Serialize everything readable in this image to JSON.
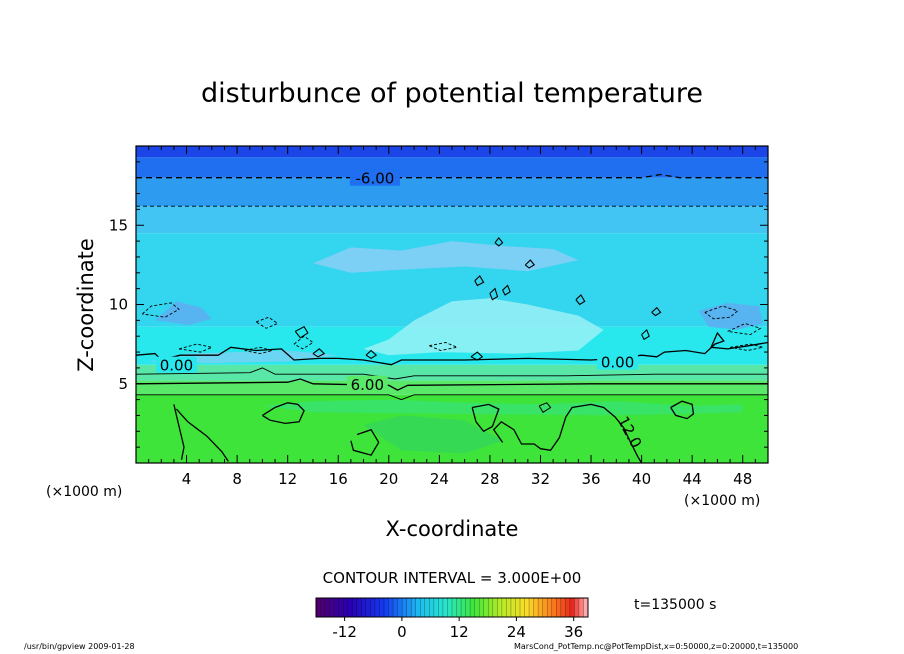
{
  "chart_data": {
    "type": "contour",
    "title": "disturbunce of potential temperature",
    "xlabel": "X-coordinate",
    "ylabel": "Z-coordinate",
    "x_unit": "(×1000 m)",
    "y_unit": "(×1000 m)",
    "xlim": [
      0,
      50
    ],
    "ylim": [
      0,
      20
    ],
    "x_ticks": [
      4,
      8,
      12,
      16,
      20,
      24,
      28,
      32,
      36,
      40,
      44,
      48
    ],
    "y_ticks": [
      5,
      10,
      15
    ],
    "contour_labels": [
      {
        "text": "-6.00",
        "x": 18.9,
        "z": 18.0
      },
      {
        "text": "0.00",
        "x": 3.2,
        "z": 6.2
      },
      {
        "text": "0.00",
        "x": 38.1,
        "z": 6.4
      },
      {
        "text": "6.00",
        "x": 18.3,
        "z": 5.0
      },
      {
        "text": "12.0",
        "x": 38.7,
        "z": 1.8
      }
    ],
    "contour_interval": "CONTOUR INTERVAL = 3.000E+00",
    "colorbar": {
      "min": -18,
      "max": 39,
      "ticks": [
        -12,
        0,
        12,
        24,
        36
      ],
      "colormap": "rainbow (purple-blue-cyan-green-yellow-red)"
    },
    "time_label": "t=135000 s",
    "bands": [
      {
        "z0": 0.0,
        "z1": 4.3,
        "color": "#3fe43a"
      },
      {
        "z0": 4.3,
        "z1": 5.2,
        "color": "#5ae869"
      },
      {
        "z0": 5.2,
        "z1": 6.2,
        "color": "#59e7a8"
      },
      {
        "z0": 6.2,
        "z1": 8.6,
        "color": "#28e8ee"
      },
      {
        "z0": 8.6,
        "z1": 14.5,
        "color": "#34d5ef"
      },
      {
        "z0": 14.5,
        "z1": 16.2,
        "color": "#43c5f3"
      },
      {
        "z0": 16.2,
        "z1": 18.0,
        "color": "#2d9bf0"
      },
      {
        "z0": 18.0,
        "z1": 19.3,
        "color": "#1f6ff0"
      },
      {
        "z0": 19.3,
        "z1": 20.0,
        "color": "#1c45e8"
      }
    ]
  },
  "footer": {
    "left": "/usr/bin/gpview   2009-01-28",
    "right": "MarsCond_PotTemp.nc@PotTempDist,x=0:50000,z=0:20000,t=135000"
  }
}
